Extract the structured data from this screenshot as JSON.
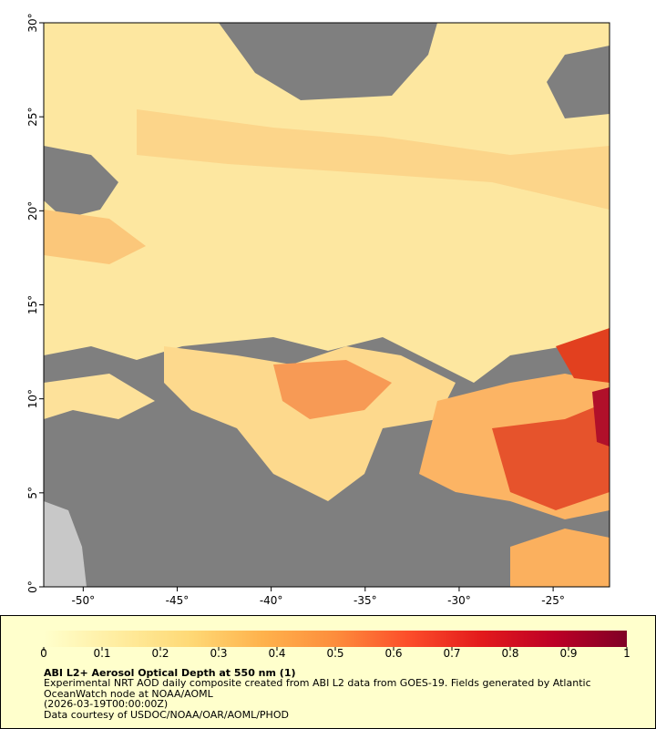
{
  "map": {
    "lon_range": [
      -52.1,
      -22
    ],
    "lat_range": [
      0,
      30
    ],
    "lon_ticks": [
      {
        "value": -50,
        "label": "-50°"
      },
      {
        "value": -45,
        "label": "-45°"
      },
      {
        "value": -40,
        "label": "-40°"
      },
      {
        "value": -35,
        "label": "-35°"
      },
      {
        "value": -30,
        "label": "-30°"
      },
      {
        "value": -25,
        "label": "-25°"
      }
    ],
    "lat_ticks": [
      {
        "value": 0,
        "label": "0°"
      },
      {
        "value": 5,
        "label": "5°"
      },
      {
        "value": 10,
        "label": "10°"
      },
      {
        "value": 15,
        "label": "15°"
      },
      {
        "value": 20,
        "label": "20°"
      },
      {
        "value": 25,
        "label": "25°"
      },
      {
        "value": 30,
        "label": "30°"
      }
    ]
  },
  "colorbar": {
    "range": [
      0,
      1
    ],
    "ticks": [
      0,
      0.1,
      0.2,
      0.3,
      0.4,
      0.5,
      0.6,
      0.7,
      0.8,
      0.9,
      1
    ],
    "colors": [
      "#ffffcc",
      "#ffeda0",
      "#fed976",
      "#feb24c",
      "#fd8d3c",
      "#fc4e2a",
      "#e31a1c",
      "#bd0026",
      "#800026"
    ]
  },
  "caption": {
    "title": "ABI L2+ Aerosol Optical Depth at 550 nm (1)",
    "description_lines": [
      "Experimental NRT AOD daily composite created from ABI L2 data from GOES-19. Fields generated by Atlantic",
      "OceanWatch node at NOAA/AOML"
    ],
    "date": "(2026-03-19T00:00:00Z)",
    "credit": "Data courtesy of USDOC/NOAA/OAR/AOML/PHOD"
  }
}
